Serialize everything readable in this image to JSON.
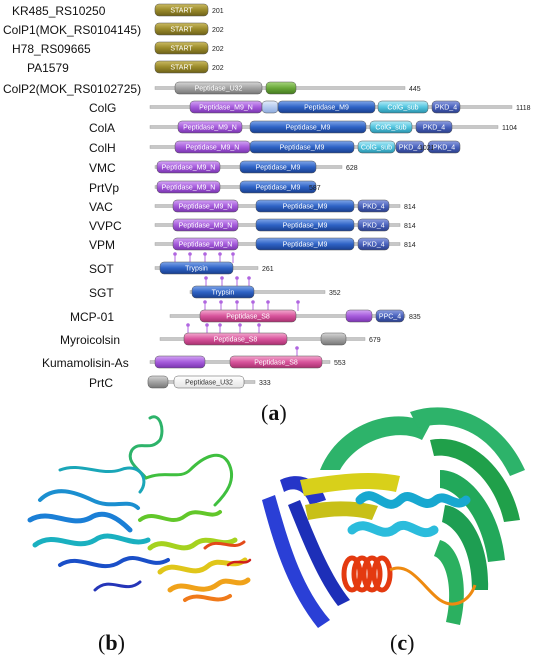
{
  "panel_a": {
    "label": "a",
    "proteins": [
      {
        "name": "KR485_RS10250",
        "length_label": "201",
        "domains": [
          {
            "label": "START",
            "style": "olive"
          }
        ],
        "markers": 0
      },
      {
        "name": "ColP1(MOK_RS0104145)",
        "length_label": "202",
        "domains": [
          {
            "label": "START",
            "style": "olive"
          }
        ],
        "markers": 0
      },
      {
        "name": "H78_RS09665",
        "length_label": "202",
        "domains": [
          {
            "label": "START",
            "style": "olive"
          }
        ],
        "markers": 0
      },
      {
        "name": "PA1579",
        "length_label": "202",
        "domains": [
          {
            "label": "START",
            "style": "olive"
          }
        ],
        "markers": 0
      },
      {
        "name": "ColP2(MOK_RS0102725)",
        "length_label": "445",
        "domains": [
          {
            "label": "Peptidase_U32",
            "style": "gray"
          },
          {
            "label": "",
            "style": "green"
          }
        ],
        "markers": 0
      },
      {
        "name": "ColG",
        "length_label": "1118",
        "domains": [
          {
            "label": "Peptidase_M9_N",
            "style": "purple"
          },
          {
            "label": "",
            "style": "lightblue"
          },
          {
            "label": "Peptidase_M9",
            "style": "blue"
          },
          {
            "label": "ColG_sub",
            "style": "cyan"
          },
          {
            "label": "PKD_4",
            "style": "navy"
          }
        ],
        "markers": 0
      },
      {
        "name": "ColA",
        "length_label": "1104",
        "domains": [
          {
            "label": "Peptidase_M9_N",
            "style": "purple"
          },
          {
            "label": "Peptidase_M9",
            "style": "blue"
          },
          {
            "label": "ColG_sub",
            "style": "cyan"
          },
          {
            "label": "PKD_4",
            "style": "navy"
          }
        ],
        "markers": 0
      },
      {
        "name": "ColH",
        "length_label": "1021",
        "domains": [
          {
            "label": "Peptidase_M9_N",
            "style": "purple"
          },
          {
            "label": "Peptidase_M9",
            "style": "blue"
          },
          {
            "label": "ColG_sub",
            "style": "cyan"
          },
          {
            "label": "PKD_4",
            "style": "navy"
          },
          {
            "label": "PKD_4",
            "style": "navy"
          }
        ],
        "markers": 0
      },
      {
        "name": "VMC",
        "length_label": "628",
        "domains": [
          {
            "label": "Peptidase_M9_N",
            "style": "purple"
          },
          {
            "label": "Peptidase_M9",
            "style": "blue"
          }
        ],
        "markers": 0
      },
      {
        "name": "PrtVp",
        "length_label": "587",
        "domains": [
          {
            "label": "Peptidase_M9_N",
            "style": "purple"
          },
          {
            "label": "Peptidase_M9",
            "style": "blue"
          }
        ],
        "markers": 0
      },
      {
        "name": "VAC",
        "length_label": "814",
        "domains": [
          {
            "label": "Peptidase_M9_N",
            "style": "purple"
          },
          {
            "label": "Peptidase_M9",
            "style": "blue"
          },
          {
            "label": "PKD_4",
            "style": "navy"
          }
        ],
        "markers": 0
      },
      {
        "name": "VVPC",
        "length_label": "814",
        "domains": [
          {
            "label": "Peptidase_M9_N",
            "style": "purple"
          },
          {
            "label": "Peptidase_M9",
            "style": "blue"
          },
          {
            "label": "PKD_4",
            "style": "navy"
          }
        ],
        "markers": 0
      },
      {
        "name": "VPM",
        "length_label": "814",
        "domains": [
          {
            "label": "Peptidase_M9_N",
            "style": "purple"
          },
          {
            "label": "Peptidase_M9",
            "style": "blue"
          },
          {
            "label": "PKD_4",
            "style": "navy"
          }
        ],
        "markers": 0
      },
      {
        "name": "SOT",
        "length_label": "261",
        "domains": [
          {
            "label": "Trypsin",
            "style": "blue"
          }
        ],
        "markers": 5
      },
      {
        "name": "SGT",
        "length_label": "352",
        "domains": [
          {
            "label": "Trypsin",
            "style": "blue"
          }
        ],
        "markers": 4
      },
      {
        "name": "MCP-01",
        "length_label": "835",
        "domains": [
          {
            "label": "Peptidase_S8",
            "style": "pink"
          },
          {
            "label": "",
            "style": "purple"
          },
          {
            "label": "PPC_4",
            "style": "navy"
          }
        ],
        "markers": 6
      },
      {
        "name": "Myroicolsin",
        "length_label": "679",
        "domains": [
          {
            "label": "Peptidase_S8",
            "style": "pink"
          },
          {
            "label": "",
            "style": "gray"
          }
        ],
        "markers": 5
      },
      {
        "name": "Kumamolisin-As",
        "length_label": "553",
        "domains": [
          {
            "label": "",
            "style": "purple"
          },
          {
            "label": "Peptidase_S8",
            "style": "pink"
          }
        ],
        "markers": 1
      },
      {
        "name": "PrtC",
        "length_label": "333",
        "domains": [
          {
            "label": "",
            "style": "gray"
          },
          {
            "label": "Peptidase_U32",
            "style": "plain"
          }
        ],
        "markers": 0
      }
    ]
  },
  "panel_b": {
    "label": "b"
  },
  "panel_c": {
    "label": "c"
  },
  "colors": {
    "olive": "#9a8a2a",
    "gray": "#9a9a9a",
    "green": "#6aa83a",
    "purple": "#9a4fd0",
    "blue": "#2a5fc0",
    "lightblue": "#a9c3ec",
    "cyan": "#4fc4df",
    "navy": "#3a55b0",
    "pink": "#d8549c",
    "backbone": "#c8c8c8"
  }
}
